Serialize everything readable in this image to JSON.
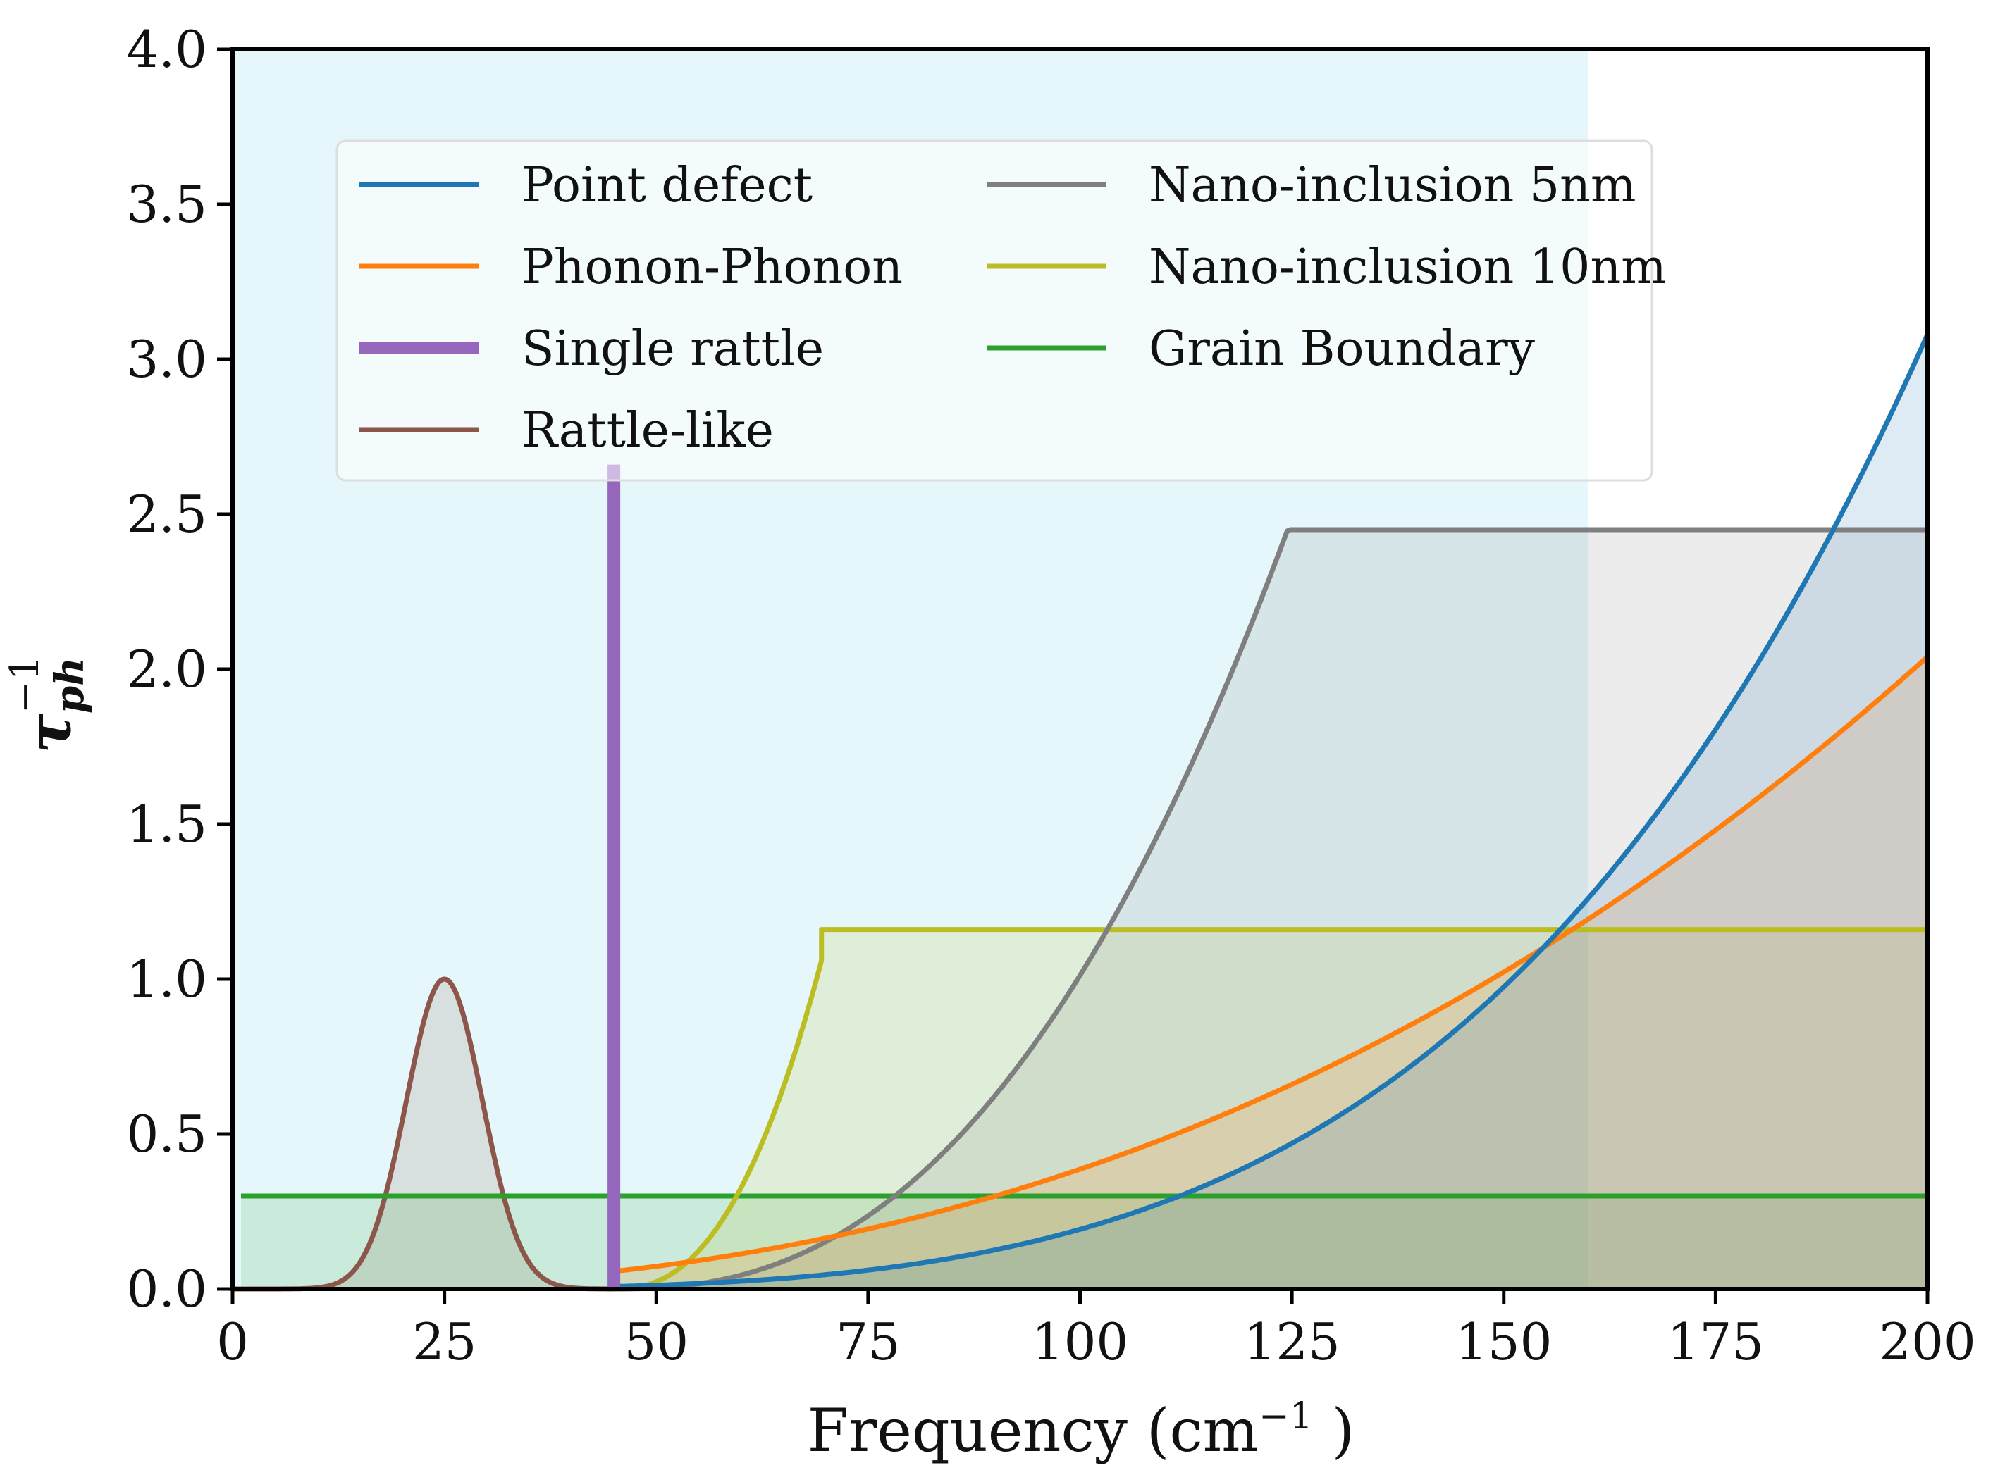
{
  "chart_data": {
    "type": "line",
    "title": "",
    "xlabel": "Frequency (cm",
    "xlabel_sup": "−1",
    "xlabel_end": " )",
    "ylabel": "τ",
    "ylabel_sub": "ph",
    "ylabel_sup": "−1",
    "xlim": [
      0,
      200
    ],
    "ylim": [
      0,
      4.0
    ],
    "xticks": [
      0,
      25,
      50,
      75,
      100,
      125,
      150,
      175,
      200
    ],
    "xtick_labels": [
      "0",
      "25",
      "50",
      "75",
      "100",
      "125",
      "150",
      "175",
      "200"
    ],
    "yticks": [
      0,
      0.5,
      1.0,
      1.5,
      2.0,
      2.5,
      3.0,
      3.5,
      4.0
    ],
    "ytick_labels": [
      "0.0",
      "0.5",
      "1.0",
      "1.5",
      "2.0",
      "2.5",
      "3.0",
      "3.5",
      "4.0"
    ],
    "shaded_region": {
      "x_start": 0,
      "x_end": 160,
      "color": "#d4f1f6"
    },
    "legend": {
      "placement": "upper-center",
      "columns": 2
    },
    "series": [
      {
        "name": "Point defect",
        "color": "#1f77b4",
        "kind": "power",
        "coef": 3.08,
        "exponent": 4,
        "x_start": 45,
        "x_end": 200
      },
      {
        "name": "Phonon-Phonon",
        "color": "#ff7f0e",
        "kind": "power",
        "coef": 2.04,
        "exponent": 2.4,
        "x_start": 45,
        "x_end": 200
      },
      {
        "name": "Single rattle",
        "color": "#9467bd",
        "kind": "vline",
        "x": 45,
        "height": 2.66
      },
      {
        "name": "Rattle-like",
        "color": "#8c564b",
        "kind": "gaussian",
        "center": 25,
        "amplitude": 1.0,
        "sigma": 4.5,
        "x_start": 0,
        "x_end": 45
      },
      {
        "name": "Nano-inclusion 5nm",
        "color": "#7f7f7f",
        "kind": "power-plateau",
        "x_start": 45,
        "x_break": 124.5,
        "plateau": 2.45,
        "exponent": 4.5,
        "x_end": 200
      },
      {
        "name": "Nano-inclusion 10nm",
        "color": "#bcbd22",
        "kind": "power-plateau",
        "x_start": 45,
        "x_break": 69.5,
        "plateau": 1.16,
        "exponent": 4.2,
        "step_to": 1.06,
        "x_end": 200
      },
      {
        "name": "Grain Boundary",
        "color": "#2ca02c",
        "kind": "constant",
        "value": 0.3,
        "x_start": 1,
        "x_end": 200
      }
    ]
  }
}
